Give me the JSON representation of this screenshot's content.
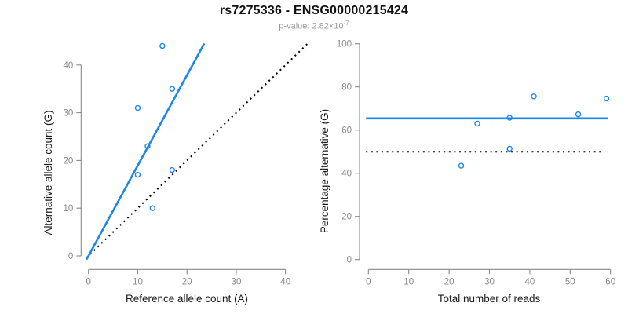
{
  "header": {
    "title": "rs7275336 - ENSG00000215424",
    "pvalue_prefix": "p-value: 2.82×10",
    "pvalue_exponent": "-7"
  },
  "colors": {
    "accent_blue": "#1c86ee",
    "dotted_black": "#000000",
    "axis_gray": "#888888",
    "tick_label_gray": "#8a8a8a",
    "subtitle_gray": "#9b9b9b"
  },
  "chart_data": [
    {
      "type": "scatter",
      "title": "rs7275336 - ENSG00000215424",
      "subtitle_pvalue": "2.82e-7",
      "xlabel": "Reference allele count (A)",
      "ylabel": "Alternative allele count (G)",
      "xlim": [
        0,
        40
      ],
      "ylim": [
        0,
        40
      ],
      "xticks": [
        0,
        10,
        20,
        30,
        40
      ],
      "yticks": [
        0,
        10,
        20,
        30,
        40
      ],
      "grid": false,
      "legend": false,
      "points": [
        [
          15,
          44
        ],
        [
          17,
          35
        ],
        [
          10,
          31
        ],
        [
          12,
          23
        ],
        [
          17,
          18
        ],
        [
          10,
          17
        ],
        [
          13,
          10
        ]
      ],
      "lines": [
        {
          "name": "identity-line",
          "style": "dotted",
          "color_key": "dotted_black",
          "width": 2,
          "from": [
            -0.4,
            -0.4
          ],
          "to": [
            44.4,
            44.4
          ]
        },
        {
          "name": "fitted-allelic-ratio-line",
          "style": "solid",
          "color_key": "accent_blue",
          "width": 2.6,
          "from": [
            -0.4,
            -0.76
          ],
          "to": [
            23.5,
            44.5
          ]
        }
      ]
    },
    {
      "type": "scatter",
      "xlabel": "Total number of reads",
      "ylabel": "Percentage alternative (G)",
      "xlim": [
        0,
        60
      ],
      "ylim": [
        0,
        100
      ],
      "xticks": [
        0,
        10,
        20,
        30,
        40,
        50,
        60
      ],
      "yticks": [
        0,
        20,
        40,
        60,
        80,
        100
      ],
      "grid": false,
      "legend": false,
      "points": [
        [
          23,
          43.5
        ],
        [
          27,
          63.0
        ],
        [
          35,
          51.4
        ],
        [
          35,
          65.7
        ],
        [
          41,
          75.6
        ],
        [
          52,
          67.3
        ],
        [
          59,
          74.6
        ]
      ],
      "lines": [
        {
          "name": "expected-50pct-line",
          "style": "dotted",
          "color_key": "dotted_black",
          "width": 2,
          "from": [
            -0.6,
            50
          ],
          "to": [
            58.2,
            50
          ]
        },
        {
          "name": "mean-percentage-line",
          "style": "solid",
          "color_key": "accent_blue",
          "width": 2.6,
          "from": [
            -0.6,
            65.4
          ],
          "to": [
            59.4,
            65.4
          ]
        }
      ]
    }
  ]
}
